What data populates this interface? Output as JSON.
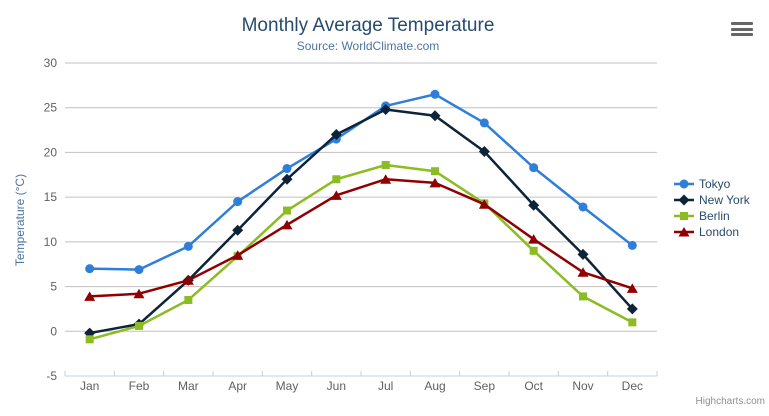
{
  "chart_data": {
    "type": "line",
    "title": "Monthly Average Temperature",
    "subtitle": "Source: WorldClimate.com",
    "categories": [
      "Jan",
      "Feb",
      "Mar",
      "Apr",
      "May",
      "Jun",
      "Jul",
      "Aug",
      "Sep",
      "Oct",
      "Nov",
      "Dec"
    ],
    "series": [
      {
        "name": "Tokyo",
        "color": "#2f7ed8",
        "marker": "circle",
        "values": [
          7.0,
          6.9,
          9.5,
          14.5,
          18.2,
          21.5,
          25.2,
          26.5,
          23.3,
          18.3,
          13.9,
          9.6
        ]
      },
      {
        "name": "New York",
        "color": "#0d233a",
        "marker": "diamond",
        "values": [
          -0.2,
          0.8,
          5.7,
          11.3,
          17.0,
          22.0,
          24.8,
          24.1,
          20.1,
          14.1,
          8.6,
          2.5
        ]
      },
      {
        "name": "Berlin",
        "color": "#8bbc21",
        "marker": "square",
        "values": [
          -0.9,
          0.6,
          3.5,
          8.4,
          13.5,
          17.0,
          18.6,
          17.9,
          14.3,
          9.0,
          3.9,
          1.0
        ]
      },
      {
        "name": "London",
        "color": "#910000",
        "marker": "triangle",
        "values": [
          3.9,
          4.2,
          5.7,
          8.5,
          11.9,
          15.2,
          17.0,
          16.6,
          14.2,
          10.3,
          6.6,
          4.8
        ]
      }
    ],
    "xlabel": "",
    "ylabel": "Temperature (°C)",
    "ylim": [
      -5,
      30
    ],
    "ytick_step": 5,
    "grid": true,
    "legend_position": "right",
    "styles": {
      "grid_color": "#c0c0c0",
      "axis_line_color": "#c0d0e0",
      "axis_label_color": "#606060",
      "title_color": "#274b6d",
      "subtitle_color": "#4d759e",
      "legend_text_color": "#274b6d"
    }
  },
  "toolbar": {
    "context_menu_icon": "hamburger-icon"
  },
  "credits": {
    "label": "Highcharts.com"
  }
}
